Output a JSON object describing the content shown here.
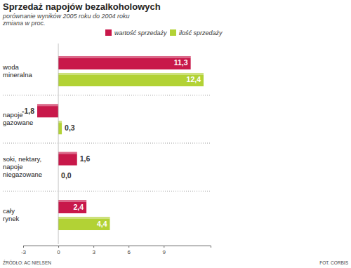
{
  "chart_data": {
    "type": "bar",
    "orientation": "horizontal",
    "title": "Sprzedaż napojów bezalkoholowych",
    "subtitle": [
      "porównanie wyników 2005 roku do 2004 roku",
      "zmiana w proc."
    ],
    "categories": [
      "woda\nmineralna",
      "napoje\ngazowane",
      "soki, nektary,\nnapoje\nniegazowane",
      "cały\nrynek"
    ],
    "series": [
      {
        "name": "wartość sprzedaży",
        "color": "#c8184a",
        "values": [
          11.3,
          -1.8,
          1.6,
          2.4
        ],
        "value_labels": [
          "11,3",
          "-1,8",
          "1,6",
          "2,4"
        ]
      },
      {
        "name": "ilość sprzedaży",
        "color": "#b2d235",
        "values": [
          12.4,
          0.3,
          0.0,
          4.4
        ],
        "value_labels": [
          "12,4",
          "0,3",
          "0,0",
          "4,4"
        ]
      }
    ],
    "xlim": [
      -3,
      13
    ],
    "xticks": [
      -3,
      0,
      3,
      6,
      9
    ],
    "data_labels": true,
    "legend": "top",
    "source": "ŹRÓDŁO: AC NIELSEN",
    "photo_credit": "FOT. CORBIS"
  }
}
